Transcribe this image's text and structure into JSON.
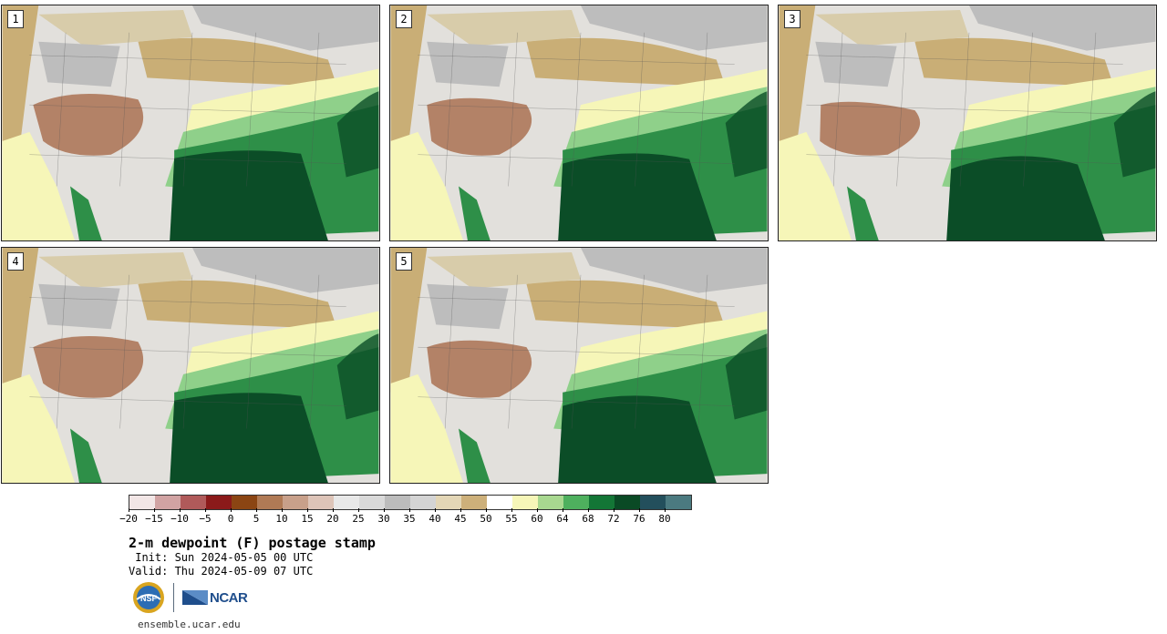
{
  "panels": [
    {
      "label": "1"
    },
    {
      "label": "2"
    },
    {
      "label": "3"
    },
    {
      "label": "4"
    },
    {
      "label": "5"
    }
  ],
  "colorbar": {
    "colors": [
      "#f2e6e6",
      "#d1a3a3",
      "#b05a5a",
      "#8b1a1a",
      "#8b4513",
      "#b07a55",
      "#c8a08a",
      "#ddc4b8",
      "#e8e8e8",
      "#d9d9d9",
      "#bcbcbc",
      "#d4d4d4",
      "#e3d6b6",
      "#cdb07a",
      "#ffffff",
      "#f6f6b8",
      "#a8d890",
      "#4eb05e",
      "#137636",
      "#0a4a25",
      "#234f5c",
      "#4b7a80"
    ],
    "ticks": [
      "-20",
      "-15",
      "-10",
      "-5",
      "0",
      "5",
      "10",
      "15",
      "20",
      "25",
      "30",
      "35",
      "40",
      "45",
      "50",
      "55",
      "60",
      "64",
      "68",
      "72",
      "76",
      "80"
    ]
  },
  "title": "2-m dewpoint (F) postage stamp",
  "init": " Init: Sun 2024-05-05 00 UTC",
  "valid": "Valid: Thu 2024-05-09 07 UTC",
  "logos": {
    "nsf_text": "NSF",
    "ncar_text": "NCAR"
  },
  "site": "ensemble.ucar.edu",
  "colors": {
    "gulf_dark": "#0b4d27",
    "green_mid": "#2e8f48",
    "green_light": "#8fd08a",
    "yellow": "#f6f6b8",
    "tan": "#c9ae76",
    "gray": "#bdbdbd",
    "brown": "#a86a4a"
  }
}
